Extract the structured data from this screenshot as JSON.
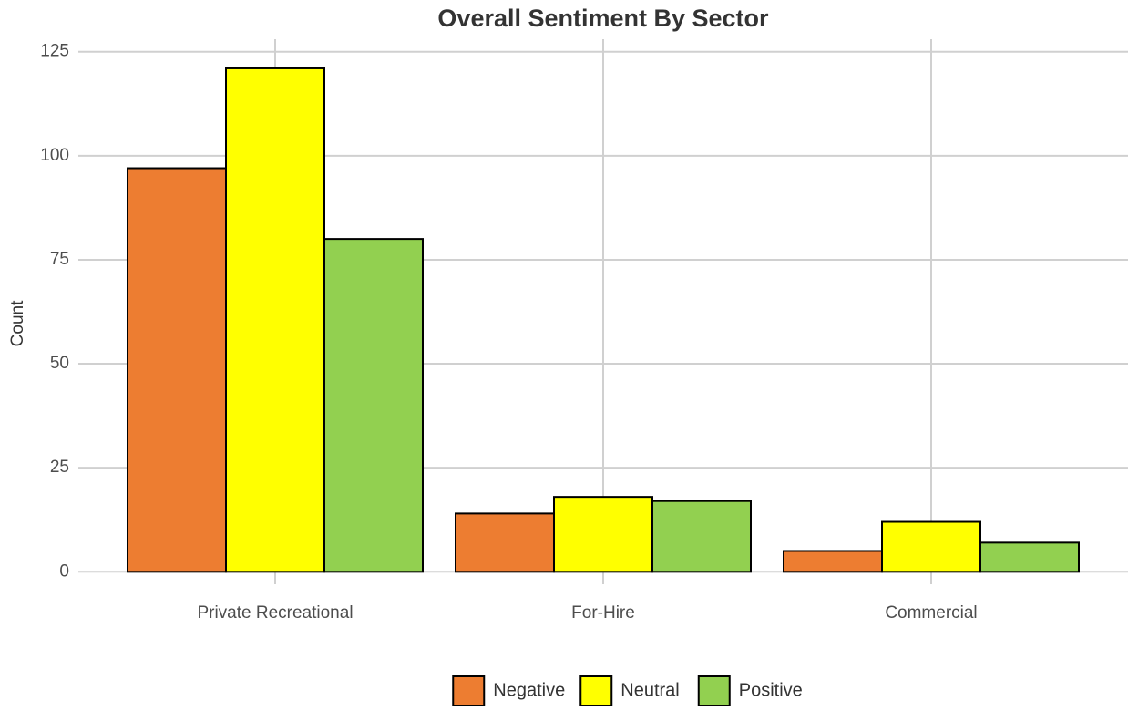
{
  "chart_data": {
    "type": "bar",
    "title": "Overall Sentiment By Sector",
    "y_label": "Count",
    "categories": [
      "Private Recreational",
      "For-Hire",
      "Commercial"
    ],
    "series": [
      {
        "name": "Negative",
        "color": "#ed7d31",
        "values": [
          97,
          14,
          5
        ]
      },
      {
        "name": "Neutral",
        "color": "#ffff00",
        "values": [
          121,
          18,
          12
        ]
      },
      {
        "name": "Positive",
        "color": "#92d050",
        "values": [
          80,
          17,
          7
        ]
      }
    ],
    "ylim": [
      -3,
      128
    ],
    "yticks": [
      0,
      25,
      50,
      75,
      100,
      125
    ],
    "grid": true,
    "legend": "bottom"
  }
}
